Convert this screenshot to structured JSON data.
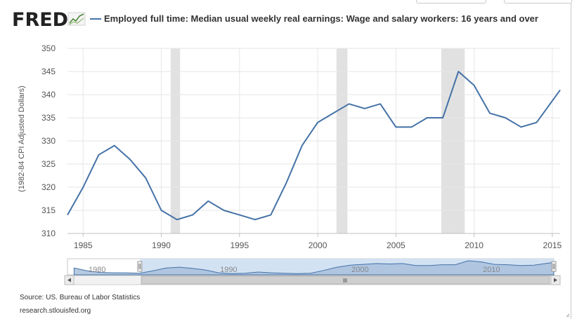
{
  "app": {
    "logo_text": "FRED",
    "source_text": "Source: US. Bureau of Labor Statistics",
    "site_text": "research.stlouisfed.org"
  },
  "colors": {
    "series": "#4572a7",
    "recession": "#e1e1e1",
    "grid": "#e6e6e6",
    "navigator_fill": "#a8bfdc"
  },
  "chart_data": {
    "type": "line",
    "title": "",
    "legend": [
      "Employed full time: Median usual weekly real earnings: Wage and salary workers: 16 years and over"
    ],
    "ylabel": "(1982-84 CPI Adjusted Dollars)",
    "xlabel": "",
    "ylim": [
      310,
      350
    ],
    "yticks": [
      310,
      315,
      320,
      325,
      330,
      335,
      340,
      345,
      350
    ],
    "xlim": [
      1984,
      2015.5
    ],
    "xticks": [
      1985,
      1990,
      1995,
      2000,
      2005,
      2010,
      2015
    ],
    "recessions": [
      [
        1990.6,
        1991.2
      ],
      [
        2001.2,
        2001.9
      ],
      [
        2007.9,
        2009.4
      ]
    ],
    "series": [
      {
        "name": "Employed full time: Median usual weekly real earnings: Wage and salary workers: 16 years and over",
        "x": [
          1984,
          1985,
          1986,
          1987,
          1988,
          1989,
          1990,
          1991,
          1992,
          1993,
          1994,
          1995,
          1996,
          1997,
          1998,
          1999,
          2000,
          2001,
          2002,
          2003,
          2004,
          2005,
          2006,
          2007,
          2008,
          2009,
          2010,
          2011,
          2012,
          2013,
          2014,
          2015.5
        ],
        "values": [
          314,
          320,
          327,
          329,
          326,
          322,
          315,
          313,
          314,
          317,
          315,
          314,
          313,
          314,
          321,
          329,
          334,
          336,
          338,
          337,
          338,
          333,
          333,
          335,
          335,
          345,
          342,
          336,
          335,
          333,
          334,
          341
        ]
      }
    ],
    "navigator": {
      "xticks": [
        1980,
        1990,
        2000,
        2010
      ],
      "xlim": [
        1978.5,
        2015.5
      ],
      "x": [
        1979,
        1980,
        1981,
        1982,
        1983,
        1984,
        1985,
        1986,
        1987,
        1988,
        1989,
        1990,
        1991,
        1992,
        1993,
        1994,
        1995,
        1996,
        1997,
        1998,
        1999,
        2000,
        2001,
        2002,
        2003,
        2004,
        2005,
        2006,
        2007,
        2008,
        2009,
        2010,
        2011,
        2012,
        2013,
        2014,
        2015.5
      ],
      "values": [
        327,
        320,
        316,
        315,
        315,
        314,
        320,
        327,
        329,
        326,
        322,
        315,
        313,
        314,
        317,
        315,
        314,
        313,
        314,
        321,
        329,
        334,
        336,
        338,
        337,
        338,
        333,
        333,
        335,
        335,
        345,
        342,
        336,
        335,
        333,
        334,
        341
      ]
    }
  }
}
